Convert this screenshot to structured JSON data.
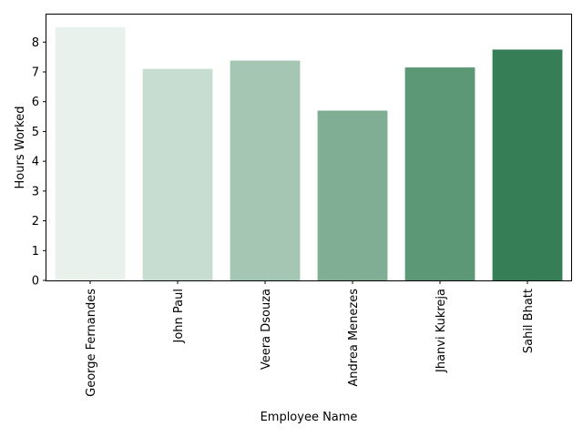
{
  "chart_data": {
    "type": "bar",
    "categories": [
      "George Fernandes",
      "John Paul",
      "Veera Dsouza",
      "Andrea Menezes",
      "Jhanvi Kukreja",
      "Sahil Bhatt"
    ],
    "values": [
      8.5,
      7.1,
      7.38,
      5.7,
      7.15,
      7.75
    ],
    "colors": [
      "#e8f1ec",
      "#c7ddd2",
      "#a5c6b3",
      "#7fae95",
      "#5c9876",
      "#367f56"
    ],
    "xlabel": "Employee Name",
    "ylabel": "Hours Worked",
    "ylim": [
      0,
      8.925
    ],
    "yticks": [
      "0",
      "1",
      "2",
      "3",
      "4",
      "5",
      "6",
      "7",
      "8"
    ],
    "grid": false
  }
}
